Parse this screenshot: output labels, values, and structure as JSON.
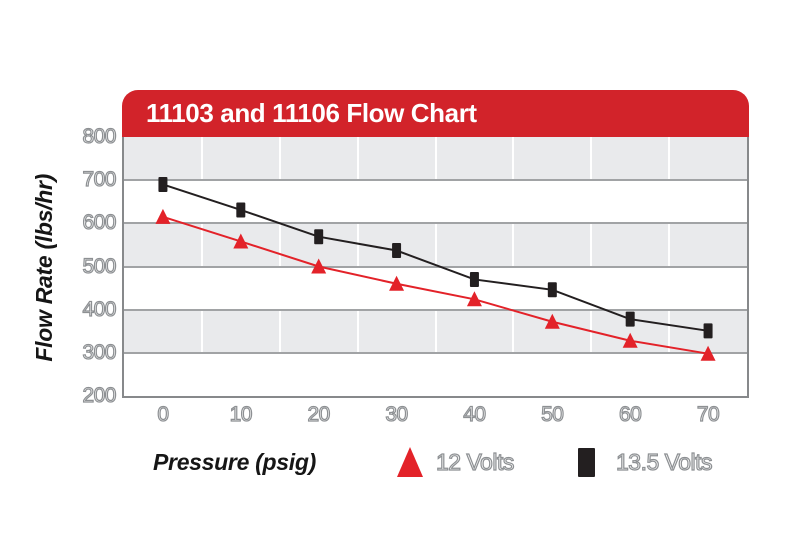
{
  "chart_data": {
    "type": "line",
    "title": "11103 and 11106 Flow Chart",
    "xlabel": "Pressure (psig)",
    "ylabel": "Flow Rate (lbs/hr)",
    "x": [
      0,
      10,
      20,
      30,
      40,
      50,
      60,
      70
    ],
    "x_tick_labels": [
      "0",
      "10",
      "20",
      "30",
      "40",
      "50",
      "60",
      "70"
    ],
    "y_ticks": [
      800,
      700,
      600,
      500,
      400,
      300,
      200
    ],
    "ylim": [
      200,
      800
    ],
    "grid": "alternating-horizontal-bands, vertical-gridlines-at-category-boundaries",
    "legend_position": "bottom",
    "series": [
      {
        "name": "12 Volts",
        "marker": "triangle",
        "color": "#e32229",
        "values": [
          615,
          558,
          500,
          460,
          424,
          372,
          328,
          298
        ]
      },
      {
        "name": "13.5 Volts",
        "marker": "square",
        "color": "#231f20",
        "values": [
          690,
          631,
          569,
          537,
          470,
          446,
          378,
          351
        ]
      }
    ]
  },
  "colors": {
    "banner_red": "#d2232a",
    "series_red": "#e32229",
    "series_black": "#231f20",
    "band_gray": "#e9eaec",
    "hline_gray": "#a1a3a5",
    "axis_border_gray": "#87898b",
    "tick_text_fill": "#f5f5f5",
    "tick_text_outline": "#8d9093",
    "title_text": "#ffffff",
    "axis_label_text": "#161616"
  }
}
